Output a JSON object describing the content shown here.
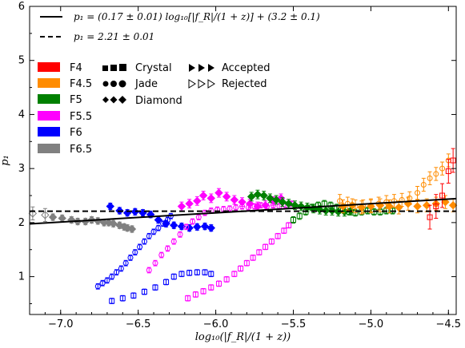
{
  "chart_data": {
    "type": "scatter",
    "xlabel": "log₁₀(|f_R|/(1 + z))",
    "ylabel": "p₁",
    "xlim": [
      -7.2,
      -4.45
    ],
    "ylim": [
      0.3,
      6.0
    ],
    "xticks": [
      -7.0,
      -6.5,
      -6.0,
      -5.5,
      -5.0,
      -4.5
    ],
    "xtick_labels": [
      "−7.0",
      "−6.5",
      "−6.0",
      "−5.5",
      "−5.0",
      "−4.5"
    ],
    "yticks": [
      1,
      2,
      3,
      4,
      5,
      6
    ],
    "ytick_labels": [
      "1",
      "2",
      "3",
      "4",
      "5",
      "6"
    ],
    "grid": false,
    "fit_lines": [
      {
        "label": "p₁ = (0.17 ± 0.01) log₁₀[|f_R|/(1 + z)] + (3.2 ± 0.1)",
        "style": "solid",
        "slope": 0.17,
        "intercept": 3.2
      },
      {
        "label": "p₁ = 2.21 ± 0.01",
        "style": "dashed",
        "constant": 2.21
      }
    ],
    "color_legend": [
      {
        "label": "F4",
        "color": "#ff0000"
      },
      {
        "label": "F4.5",
        "color": "#ff8c00"
      },
      {
        "label": "F5",
        "color": "#008000"
      },
      {
        "label": "F5.5",
        "color": "#ff00ff"
      },
      {
        "label": "F6",
        "color": "#0000ff"
      },
      {
        "label": "F6.5",
        "color": "#808080"
      }
    ],
    "marker_legend": [
      {
        "label": "Crystal",
        "shape": "square"
      },
      {
        "label": "Jade",
        "shape": "circle"
      },
      {
        "label": "Diamond",
        "shape": "diamond"
      }
    ],
    "fill_legend": [
      {
        "label": "Accepted",
        "fill": "filled"
      },
      {
        "label": "Rejected",
        "fill": "open"
      }
    ],
    "series": [
      {
        "model": "F6.5",
        "sim": "Diamond",
        "color": "#808080",
        "shape": "diamond",
        "filled": true,
        "err": 0.06,
        "x": [
          -7.05,
          -6.99,
          -6.93,
          -6.89,
          -6.84,
          -6.8,
          -6.76,
          -6.72,
          -6.69,
          -6.66,
          -6.62,
          -6.59,
          -6.57,
          -6.54
        ],
        "y": [
          2.1,
          2.08,
          2.05,
          2.02,
          2.02,
          2.05,
          2.03,
          2.0,
          2.0,
          1.98,
          1.95,
          1.92,
          1.9,
          1.88
        ]
      },
      {
        "model": "F6.5",
        "sim": "Diamond",
        "color": "#808080",
        "shape": "diamond",
        "filled": false,
        "err": 0.12,
        "x": [
          -7.18,
          -7.1
        ],
        "y": [
          2.17,
          2.14
        ]
      },
      {
        "model": "F6",
        "sim": "Diamond",
        "color": "#0000ff",
        "shape": "diamond",
        "filled": true,
        "err": 0.06,
        "x": [
          -6.68,
          -6.62,
          -6.57,
          -6.52,
          -6.47,
          -6.42,
          -6.37,
          -6.32,
          -6.27,
          -6.22,
          -6.17,
          -6.12,
          -6.07,
          -6.03
        ],
        "y": [
          2.3,
          2.22,
          2.18,
          2.2,
          2.18,
          2.15,
          2.05,
          1.98,
          1.95,
          1.93,
          1.9,
          1.92,
          1.93,
          1.9
        ]
      },
      {
        "model": "F6",
        "sim": "Jade",
        "color": "#0000ff",
        "shape": "circle",
        "filled": false,
        "err": 0.05,
        "x": [
          -6.76,
          -6.73,
          -6.7,
          -6.67,
          -6.64,
          -6.61,
          -6.58,
          -6.55,
          -6.52,
          -6.49,
          -6.46,
          -6.43,
          -6.4,
          -6.37,
          -6.34,
          -6.31,
          -6.29
        ],
        "y": [
          0.82,
          0.88,
          0.93,
          1.0,
          1.08,
          1.15,
          1.25,
          1.35,
          1.45,
          1.55,
          1.65,
          1.75,
          1.83,
          1.9,
          1.98,
          2.05,
          2.12
        ]
      },
      {
        "model": "F6",
        "sim": "Crystal",
        "color": "#0000ff",
        "shape": "square",
        "filled": false,
        "err": 0.05,
        "x": [
          -6.67,
          -6.6,
          -6.53,
          -6.46,
          -6.39,
          -6.32,
          -6.27,
          -6.22,
          -6.17,
          -6.12,
          -6.07,
          -6.03
        ],
        "y": [
          0.55,
          0.6,
          0.65,
          0.72,
          0.8,
          0.9,
          1.0,
          1.05,
          1.07,
          1.08,
          1.08,
          1.05
        ]
      },
      {
        "model": "F5.5",
        "sim": "Diamond",
        "color": "#ff00ff",
        "shape": "diamond",
        "filled": true,
        "err": 0.08,
        "x": [
          -6.22,
          -6.17,
          -6.12,
          -6.08,
          -6.03,
          -5.98,
          -5.93,
          -5.88,
          -5.83,
          -5.78,
          -5.73,
          -5.68,
          -5.63,
          -5.58
        ],
        "y": [
          2.3,
          2.35,
          2.4,
          2.5,
          2.45,
          2.55,
          2.48,
          2.42,
          2.38,
          2.35,
          2.3,
          2.32,
          2.4,
          2.45
        ]
      },
      {
        "model": "F5.5",
        "sim": "Jade",
        "color": "#ff00ff",
        "shape": "circle",
        "filled": false,
        "err": 0.05,
        "x": [
          -6.43,
          -6.39,
          -6.35,
          -6.31,
          -6.27,
          -6.23,
          -6.19,
          -6.15,
          -6.11,
          -6.07,
          -6.03,
          -5.99,
          -5.95,
          -5.91,
          -5.87,
          -5.83,
          -5.79,
          -5.75,
          -5.71,
          -5.67,
          -5.63,
          -5.59,
          -5.55,
          -5.51
        ],
        "y": [
          1.12,
          1.25,
          1.4,
          1.52,
          1.65,
          1.78,
          1.92,
          2.02,
          2.1,
          2.18,
          2.22,
          2.24,
          2.25,
          2.26,
          2.28,
          2.3,
          2.28,
          2.3,
          2.32,
          2.3,
          2.32,
          2.3,
          2.32,
          2.35
        ]
      },
      {
        "model": "F5.5",
        "sim": "Crystal",
        "color": "#ff00ff",
        "shape": "square",
        "filled": false,
        "err": 0.05,
        "x": [
          -6.18,
          -6.13,
          -6.08,
          -6.03,
          -5.98,
          -5.93,
          -5.88,
          -5.84,
          -5.8,
          -5.76,
          -5.72,
          -5.68,
          -5.64,
          -5.6,
          -5.56,
          -5.53,
          -5.5
        ],
        "y": [
          0.6,
          0.67,
          0.73,
          0.8,
          0.87,
          0.95,
          1.05,
          1.15,
          1.25,
          1.35,
          1.45,
          1.55,
          1.65,
          1.75,
          1.85,
          1.95,
          2.05
        ]
      },
      {
        "model": "F5",
        "sim": "Diamond",
        "color": "#008000",
        "shape": "diamond",
        "filled": true,
        "err": 0.08,
        "x": [
          -5.77,
          -5.73,
          -5.69,
          -5.65,
          -5.61,
          -5.57,
          -5.53,
          -5.49,
          -5.45,
          -5.41,
          -5.37,
          -5.33,
          -5.29,
          -5.25,
          -5.21,
          -5.17,
          -5.13
        ],
        "y": [
          2.48,
          2.52,
          2.5,
          2.45,
          2.42,
          2.38,
          2.35,
          2.32,
          2.3,
          2.28,
          2.26,
          2.24,
          2.22,
          2.22,
          2.2,
          2.2,
          2.22
        ]
      },
      {
        "model": "F5",
        "sim": "Crystal",
        "color": "#008000",
        "shape": "square",
        "filled": false,
        "err": 0.06,
        "x": [
          -5.5,
          -5.46,
          -5.42,
          -5.38,
          -5.34,
          -5.3,
          -5.26,
          -5.22,
          -5.18,
          -5.14,
          -5.1,
          -5.06,
          -5.02,
          -4.98,
          -4.94,
          -4.9,
          -4.86
        ],
        "y": [
          2.05,
          2.12,
          2.2,
          2.28,
          2.32,
          2.35,
          2.32,
          2.28,
          2.25,
          2.2,
          2.18,
          2.2,
          2.22,
          2.2,
          2.2,
          2.22,
          2.22
        ]
      },
      {
        "model": "F4.5",
        "sim": "Jade",
        "color": "#ff8c00",
        "shape": "circle",
        "filled": false,
        "err": 0.12,
        "x": [
          -5.2,
          -5.15,
          -5.1,
          -5.05,
          -5.0,
          -4.95,
          -4.9,
          -4.85,
          -4.8,
          -4.75,
          -4.7,
          -4.66,
          -4.62,
          -4.58,
          -4.54,
          -4.5
        ],
        "y": [
          2.4,
          2.35,
          2.3,
          2.3,
          2.32,
          2.35,
          2.38,
          2.4,
          2.42,
          2.45,
          2.55,
          2.7,
          2.82,
          2.9,
          3.0,
          3.15
        ]
      },
      {
        "model": "F4.5",
        "sim": "Diamond",
        "color": "#ff8c00",
        "shape": "diamond",
        "filled": true,
        "err": 0.12,
        "x": [
          -5.18,
          -5.12,
          -5.06,
          -5.0,
          -4.94,
          -4.88,
          -4.82,
          -4.76,
          -4.7,
          -4.64,
          -4.58,
          -4.52,
          -4.47
        ],
        "y": [
          2.3,
          2.32,
          2.28,
          2.3,
          2.32,
          2.3,
          2.28,
          2.35,
          2.3,
          2.32,
          2.35,
          2.38,
          2.32
        ]
      },
      {
        "model": "F4",
        "sim": "Crystal",
        "color": "#ff0000",
        "shape": "square",
        "filled": false,
        "err": 0.22,
        "x": [
          -4.62,
          -4.58,
          -4.54,
          -4.5,
          -4.47
        ],
        "y": [
          2.1,
          2.3,
          2.5,
          2.95,
          3.15
        ]
      }
    ]
  }
}
